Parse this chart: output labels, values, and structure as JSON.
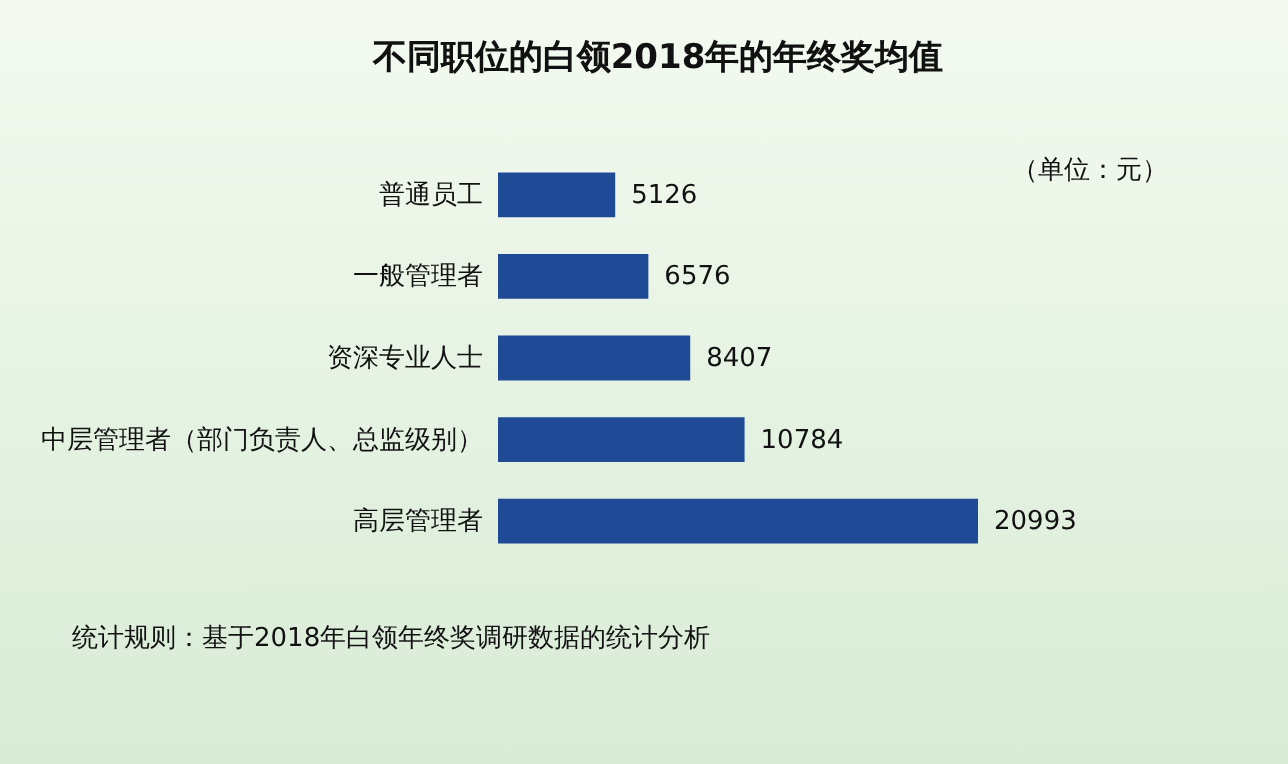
{
  "chart_data": {
    "type": "bar",
    "orientation": "horizontal",
    "title": "不同职位的白领2018年的年终奖均值",
    "categories": [
      "普通员工",
      "一般管理者",
      "资深专业人士",
      "中层管理者（部门负责人、总监级别）",
      "高层管理者"
    ],
    "values": [
      5126,
      6576,
      8407,
      10784,
      20993
    ],
    "color": "#1f4a96",
    "data_labels": true,
    "tick_labels": "y",
    "annotations": [
      "（单位：元）",
      "统计规则：基于2018年白领年终奖调研数据的统计分析"
    ]
  }
}
